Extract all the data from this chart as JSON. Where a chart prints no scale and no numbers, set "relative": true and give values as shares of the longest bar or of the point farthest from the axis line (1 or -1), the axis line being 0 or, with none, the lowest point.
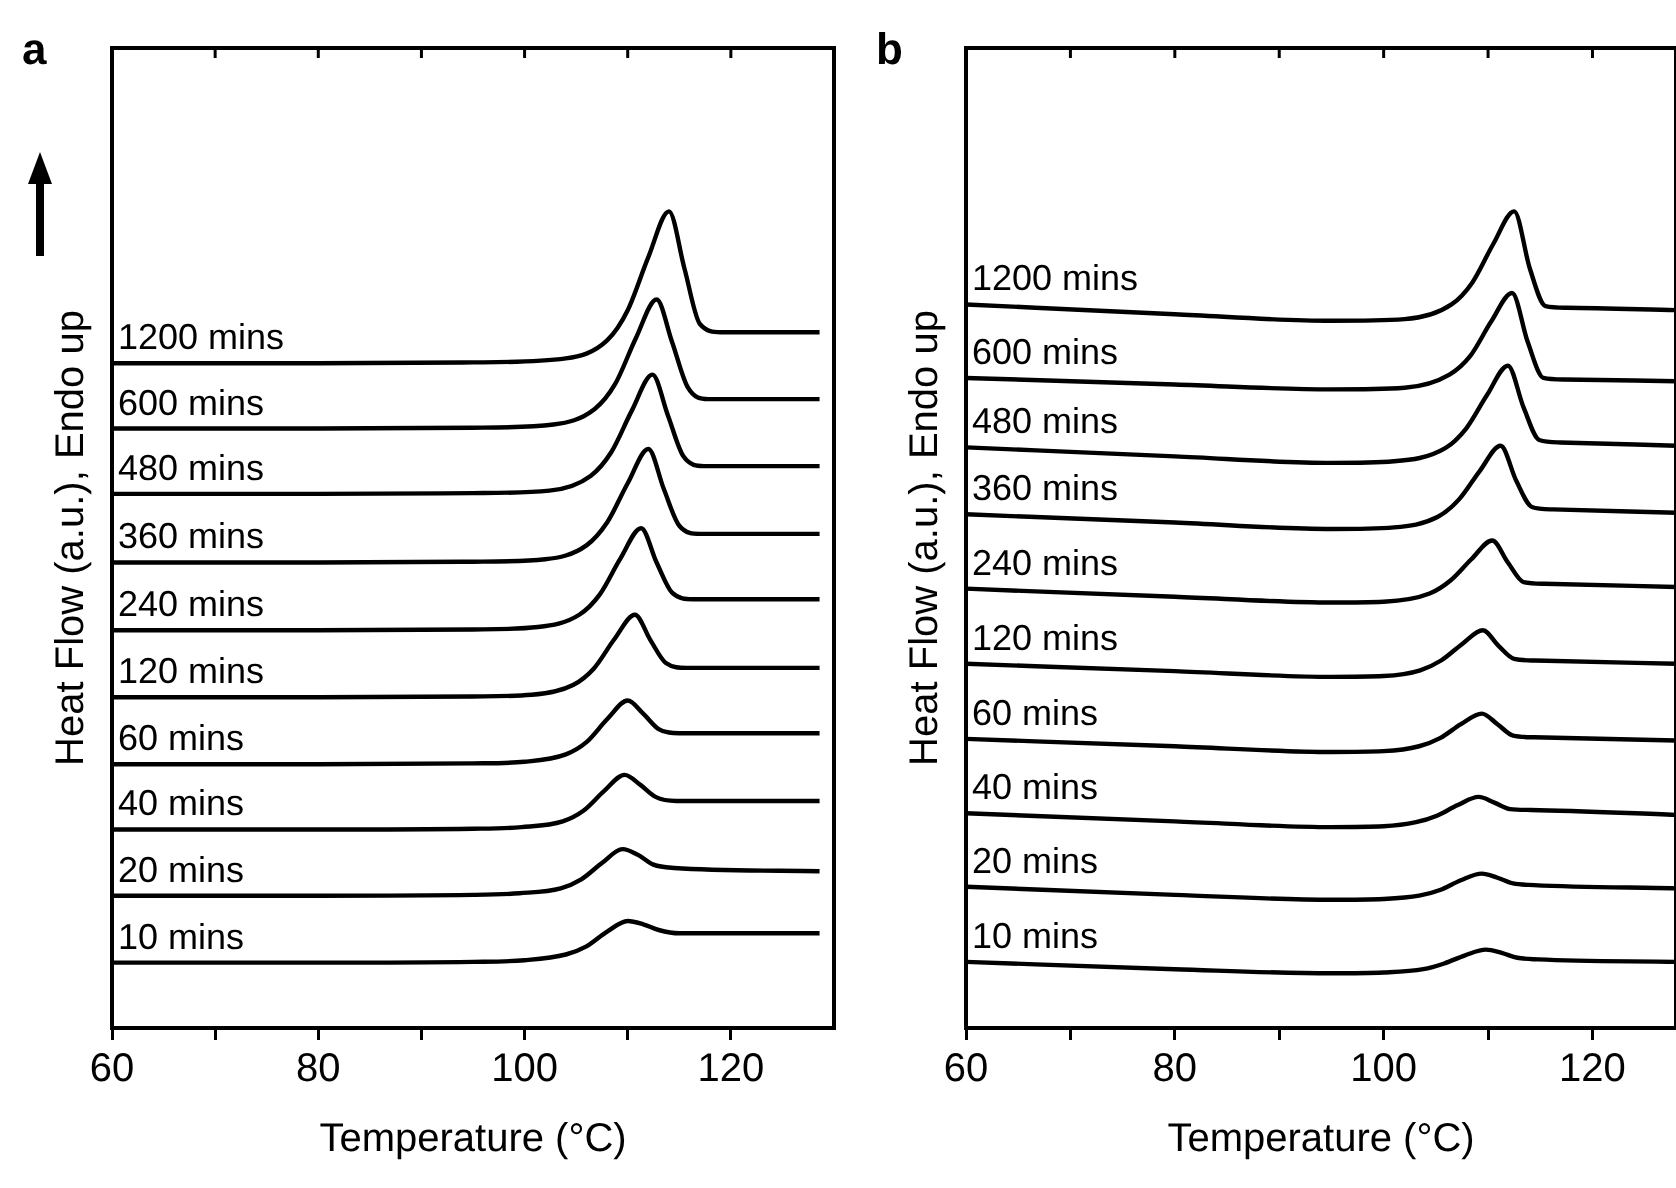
{
  "chart_data": [
    {
      "type": "line",
      "title": "a",
      "xlabel": "Temperature (°C)",
      "ylabel": "Heat Flow (a.u.), Endo up",
      "relative": true,
      "xlim": [
        60,
        130
      ],
      "xticks": [
        60,
        {
          "value": 70,
          "label": null
        },
        80,
        {
          "value": 90,
          "label": null
        },
        100,
        {
          "value": 110,
          "label": null
        },
        120
      ],
      "grid": false,
      "legend": false,
      "marker": "none",
      "line_style": "solid",
      "series": [
        {
          "name": "1200 mins",
          "color": "#000000",
          "x": [
            60,
            80,
            95,
            104,
            108,
            110,
            112,
            114,
            115.5,
            117,
            119,
            128.6
          ],
          "values": [
            0.814,
            0.814,
            0.815,
            0.82,
            0.842,
            0.879,
            0.944,
            1.0,
            0.93,
            0.862,
            0.852,
            0.852
          ]
        },
        {
          "name": "600 mins",
          "color": "#000000",
          "x": [
            60,
            80,
            95,
            102.8,
            106.8,
            108.8,
            110.8,
            112.8,
            114.3,
            115.8,
            117.8,
            128.6
          ],
          "values": [
            0.734,
            0.734,
            0.735,
            0.739,
            0.758,
            0.789,
            0.845,
            0.892,
            0.84,
            0.785,
            0.77,
            0.77
          ]
        },
        {
          "name": "480 mins",
          "color": "#000000",
          "x": [
            60,
            80,
            95,
            102.4,
            106.4,
            108.4,
            110.4,
            112.4,
            113.9,
            115.4,
            117.4,
            128.6
          ],
          "values": [
            0.654,
            0.654,
            0.655,
            0.658,
            0.676,
            0.705,
            0.756,
            0.8,
            0.75,
            0.7,
            0.688,
            0.688
          ]
        },
        {
          "name": "360 mins",
          "color": "#000000",
          "x": [
            60,
            80,
            95,
            102,
            106,
            108,
            110,
            112,
            113.5,
            115,
            117,
            128.6
          ],
          "values": [
            0.57,
            0.57,
            0.571,
            0.574,
            0.591,
            0.619,
            0.667,
            0.709,
            0.66,
            0.615,
            0.605,
            0.605
          ]
        },
        {
          "name": "240 mins",
          "color": "#000000",
          "x": [
            60,
            80,
            95,
            101.3,
            105.3,
            107.3,
            109.3,
            111.3,
            112.8,
            114.3,
            116.3,
            128.6
          ],
          "values": [
            0.487,
            0.487,
            0.488,
            0.491,
            0.506,
            0.531,
            0.575,
            0.612,
            0.57,
            0.533,
            0.525,
            0.525
          ]
        },
        {
          "name": "120 mins",
          "color": "#000000",
          "x": [
            60,
            80,
            95,
            100.7,
            104.7,
            106.7,
            108.7,
            110.7,
            112.2,
            113.7,
            115.7,
            128.6
          ],
          "values": [
            0.405,
            0.405,
            0.406,
            0.408,
            0.42,
            0.44,
            0.476,
            0.506,
            0.475,
            0.447,
            0.441,
            0.441
          ]
        },
        {
          "name": "60 mins",
          "color": "#000000",
          "x": [
            60,
            80,
            95,
            100,
            104,
            106,
            108,
            110,
            111.5,
            113,
            115,
            128.6
          ],
          "values": [
            0.323,
            0.323,
            0.324,
            0.326,
            0.335,
            0.35,
            0.378,
            0.401,
            0.385,
            0.366,
            0.361,
            0.361
          ]
        },
        {
          "name": "40 mins",
          "color": "#000000",
          "x": [
            60,
            80,
            95,
            99.7,
            103.7,
            105.7,
            107.7,
            109.7,
            111.2,
            112.7,
            114.7,
            128.6
          ],
          "values": [
            0.243,
            0.243,
            0.244,
            0.246,
            0.253,
            0.266,
            0.29,
            0.31,
            0.298,
            0.283,
            0.278,
            0.278
          ]
        },
        {
          "name": "20 mins",
          "color": "#000000",
          "x": [
            60,
            80,
            95,
            99.5,
            103.5,
            105.5,
            107.5,
            109.5,
            111,
            112.5,
            114.5,
            128.6
          ],
          "values": [
            0.162,
            0.162,
            0.163,
            0.165,
            0.171,
            0.182,
            0.202,
            0.219,
            0.212,
            0.2,
            0.196,
            0.192
          ]
        },
        {
          "name": "10 mins",
          "color": "#000000",
          "x": [
            60,
            80,
            95,
            100,
            104,
            106,
            108,
            110,
            111.5,
            113,
            115,
            128.6
          ],
          "values": [
            0.08,
            0.08,
            0.081,
            0.083,
            0.09,
            0.1,
            0.118,
            0.131,
            0.127,
            0.12,
            0.116,
            0.116
          ]
        }
      ]
    },
    {
      "type": "line",
      "title": "b",
      "xlabel": "Temperature (°C)",
      "ylabel": "Heat Flow (a.u.), Endo up",
      "relative": true,
      "xlim": [
        60,
        128
      ],
      "xticks": [
        60,
        {
          "value": 70,
          "label": null
        },
        80,
        {
          "value": 90,
          "label": null
        },
        100,
        {
          "value": 110,
          "label": null
        },
        120
      ],
      "grid": false,
      "legend": false,
      "marker": "none",
      "line_style": "solid",
      "series": [
        {
          "name": "1200 mins",
          "color": "#000000",
          "x": [
            60,
            80,
            95,
            102,
            106.5,
            108.5,
            110.5,
            112.5,
            114,
            115.5,
            117.5,
            128
          ],
          "values": [
            0.886,
            0.874,
            0.866,
            0.868,
            0.886,
            0.913,
            0.96,
            1.0,
            0.93,
            0.884,
            0.882,
            0.879
          ]
        },
        {
          "name": "600 mins",
          "color": "#000000",
          "x": [
            60,
            80,
            95,
            102,
            106.3,
            108.3,
            110.3,
            112.3,
            113.8,
            115.3,
            117.3,
            128
          ],
          "values": [
            0.796,
            0.788,
            0.782,
            0.784,
            0.8,
            0.823,
            0.865,
            0.9,
            0.84,
            0.796,
            0.794,
            0.792
          ]
        },
        {
          "name": "480 mins",
          "color": "#000000",
          "x": [
            60,
            80,
            95,
            101,
            105.9,
            107.9,
            109.9,
            111.9,
            113.4,
            114.9,
            116.9,
            128
          ],
          "values": [
            0.711,
            0.7,
            0.692,
            0.694,
            0.71,
            0.734,
            0.775,
            0.811,
            0.76,
            0.72,
            0.717,
            0.713
          ]
        },
        {
          "name": "360 mins",
          "color": "#000000",
          "x": [
            60,
            80,
            95,
            101,
            105.2,
            107.2,
            109.2,
            111.2,
            112.7,
            114.2,
            116.2,
            128
          ],
          "values": [
            0.629,
            0.619,
            0.611,
            0.613,
            0.626,
            0.647,
            0.682,
            0.713,
            0.67,
            0.638,
            0.635,
            0.631
          ]
        },
        {
          "name": "240 mins",
          "color": "#000000",
          "x": [
            60,
            80,
            95,
            100,
            104.4,
            106.4,
            108.4,
            110.4,
            111.9,
            113.4,
            115.4,
            128
          ],
          "values": [
            0.538,
            0.528,
            0.521,
            0.522,
            0.532,
            0.548,
            0.574,
            0.597,
            0.57,
            0.546,
            0.544,
            0.54
          ]
        },
        {
          "name": "120 mins",
          "color": "#000000",
          "x": [
            60,
            80,
            95,
            100,
            103.5,
            105.5,
            107.5,
            109.5,
            111,
            112.5,
            114.5,
            128
          ],
          "values": [
            0.446,
            0.437,
            0.43,
            0.431,
            0.438,
            0.45,
            0.47,
            0.487,
            0.468,
            0.452,
            0.45,
            0.446
          ]
        },
        {
          "name": "60 mins",
          "color": "#000000",
          "x": [
            60,
            80,
            95,
            100,
            103.4,
            105.4,
            107.4,
            109.4,
            110.9,
            112.4,
            114.4,
            128
          ],
          "values": [
            0.354,
            0.345,
            0.338,
            0.339,
            0.345,
            0.355,
            0.372,
            0.385,
            0.372,
            0.358,
            0.356,
            0.352
          ]
        },
        {
          "name": "40 mins",
          "color": "#000000",
          "x": [
            60,
            80,
            95,
            100,
            103.1,
            105.1,
            107.1,
            109.1,
            110.6,
            112.1,
            114.1,
            128
          ],
          "values": [
            0.263,
            0.253,
            0.246,
            0.247,
            0.252,
            0.26,
            0.273,
            0.283,
            0.276,
            0.268,
            0.267,
            0.261
          ]
        },
        {
          "name": "20 mins",
          "color": "#000000",
          "x": [
            60,
            80,
            95,
            100,
            103.4,
            105.4,
            107.4,
            109.4,
            110.9,
            112.4,
            114.4,
            128
          ],
          "values": [
            0.173,
            0.163,
            0.157,
            0.158,
            0.162,
            0.169,
            0.181,
            0.189,
            0.184,
            0.177,
            0.175,
            0.171
          ]
        },
        {
          "name": "10 mins",
          "color": "#000000",
          "x": [
            60,
            80,
            95,
            100,
            103.8,
            105.8,
            107.8,
            109.8,
            111.3,
            112.8,
            114.8,
            128
          ],
          "values": [
            0.081,
            0.072,
            0.067,
            0.068,
            0.072,
            0.079,
            0.089,
            0.096,
            0.092,
            0.086,
            0.084,
            0.081
          ]
        }
      ]
    }
  ]
}
